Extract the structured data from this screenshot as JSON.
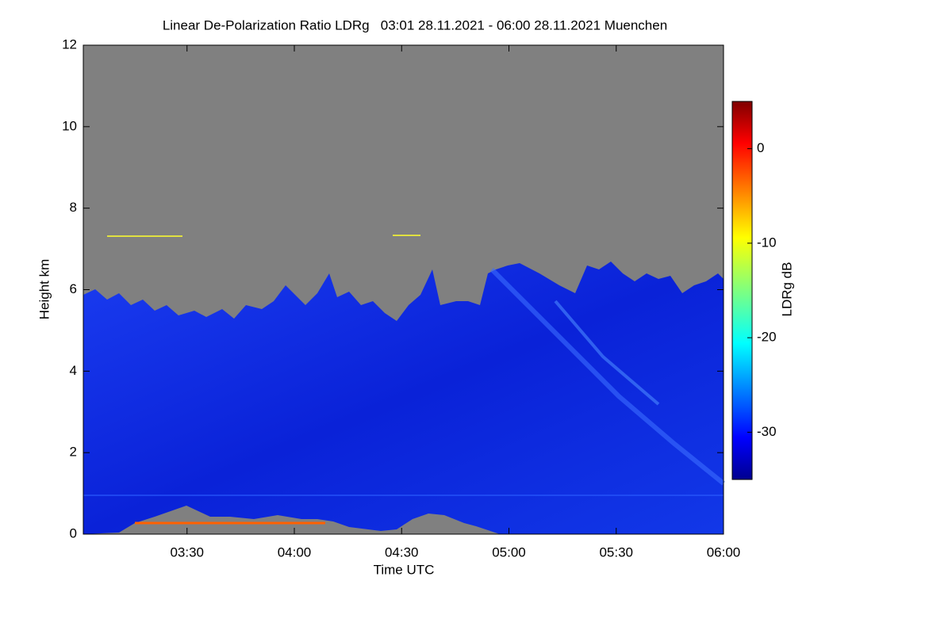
{
  "chart_data": {
    "type": "heatmap",
    "title": "Linear De-Polarization Ratio LDRg   03:01 28.11.2021 - 06:00 28.11.2021 Muenchen",
    "x_label": "Time UTC",
    "y_label": "Height km",
    "colorbar_label": "LDRg dB",
    "xlim": [
      181,
      360
    ],
    "xticks": [
      {
        "value": 210,
        "label": "03:30"
      },
      {
        "value": 240,
        "label": "04:00"
      },
      {
        "value": 270,
        "label": "04:30"
      },
      {
        "value": 300,
        "label": "05:00"
      },
      {
        "value": 330,
        "label": "05:30"
      },
      {
        "value": 360,
        "label": "06:00"
      }
    ],
    "ylim": [
      0,
      12
    ],
    "yticks": [
      0,
      2,
      4,
      6,
      8,
      10,
      12
    ],
    "clim": [
      -35,
      5
    ],
    "cticks": [
      0,
      -10,
      -20,
      -30
    ]
  }
}
